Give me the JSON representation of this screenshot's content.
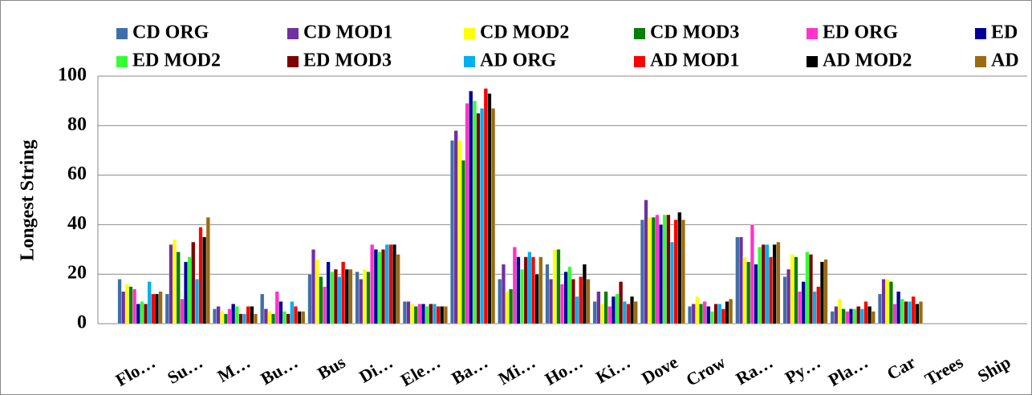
{
  "chart_data": {
    "type": "bar",
    "y_label": "Longest String",
    "categories": [
      "Flo…",
      "Su…",
      "M…",
      "Bu…",
      "Bus",
      "Di…",
      "Ele…",
      "Ba…",
      "Mi…",
      "Ho…",
      "Ki…",
      "Dove",
      "Crow",
      "Ra…",
      "Py…",
      "Pla…",
      "Car",
      "Trees",
      "Ship"
    ],
    "series": [
      {
        "name": "CD ORG",
        "color": "#3f6fa8",
        "values": [
          18,
          12,
          6,
          12,
          20,
          21,
          9,
          74,
          18,
          24,
          9,
          42,
          7,
          35,
          19,
          5,
          12,
          0,
          0
        ]
      },
      {
        "name": "CD MOD1",
        "color": "#7030a0",
        "values": [
          13,
          32,
          7,
          6,
          30,
          18,
          9,
          78,
          24,
          18,
          13,
          50,
          8,
          35,
          22,
          7,
          18,
          0,
          0
        ]
      },
      {
        "name": "CD MOD2",
        "color": "#ffff00",
        "values": [
          16,
          34,
          5,
          5,
          26,
          22,
          8,
          74,
          13,
          30,
          8,
          43,
          11,
          27,
          28,
          10,
          18,
          0,
          0
        ]
      },
      {
        "name": "CD MOD3",
        "color": "#008000",
        "values": [
          15,
          29,
          4,
          4,
          19,
          21,
          7,
          66,
          14,
          30,
          13,
          43,
          8,
          25,
          27,
          6,
          17,
          0,
          0
        ]
      },
      {
        "name": "ED ORG",
        "color": "#ff33cc",
        "values": [
          14,
          10,
          6,
          13,
          15,
          32,
          8,
          89,
          31,
          16,
          7,
          44,
          9,
          40,
          13,
          5,
          8,
          0,
          0
        ]
      },
      {
        "name": "ED",
        "color": "#000099",
        "values": [
          8,
          25,
          8,
          9,
          25,
          30,
          8,
          94,
          27,
          21,
          11,
          40,
          7,
          24,
          17,
          6,
          13,
          0,
          0
        ]
      },
      {
        "name": "ED MOD2",
        "color": "#33ff33",
        "values": [
          9,
          27,
          7,
          5,
          21,
          29,
          7,
          90,
          22,
          23,
          12,
          44,
          5,
          31,
          29,
          6,
          10,
          0,
          0
        ]
      },
      {
        "name": "ED MOD3",
        "color": "#800000",
        "values": [
          8,
          33,
          4,
          4,
          22,
          30,
          8,
          85,
          27,
          18,
          17,
          44,
          8,
          32,
          28,
          7,
          9,
          0,
          0
        ]
      },
      {
        "name": "AD ORG",
        "color": "#00b0f0",
        "values": [
          17,
          18,
          4,
          9,
          19,
          32,
          8,
          87,
          29,
          11,
          9,
          33,
          8,
          32,
          13,
          6,
          9,
          0,
          0
        ]
      },
      {
        "name": "AD MOD1",
        "color": "#ff0000",
        "values": [
          12,
          39,
          7,
          7,
          25,
          32,
          7,
          95,
          27,
          19,
          8,
          42,
          6,
          27,
          15,
          9,
          11,
          0,
          0
        ]
      },
      {
        "name": "AD MOD2",
        "color": "#000000",
        "values": [
          12,
          35,
          7,
          5,
          22,
          32,
          7,
          93,
          20,
          24,
          11,
          45,
          9,
          32,
          25,
          7,
          8,
          0,
          0
        ]
      },
      {
        "name": "AD",
        "color": "#9c6a10",
        "values": [
          13,
          43,
          4,
          5,
          22,
          28,
          7,
          87,
          27,
          18,
          9,
          42,
          10,
          33,
          26,
          5,
          9,
          0,
          0
        ]
      }
    ],
    "ylim": [
      0,
      100
    ],
    "yticks": [
      0,
      20,
      40,
      60,
      80,
      100
    ],
    "grid": true
  }
}
